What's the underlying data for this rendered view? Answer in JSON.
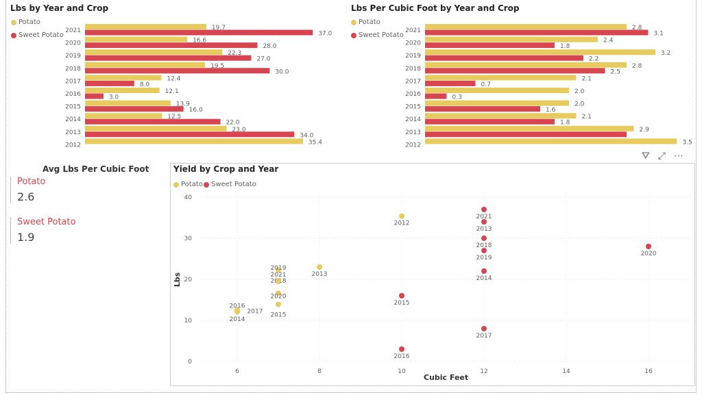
{
  "colors": {
    "potato": "#E8CB5E",
    "sweet_potato": "#D64550"
  },
  "chart_data": [
    {
      "type": "bar",
      "orientation": "horizontal",
      "title": "Lbs by Year and Crop",
      "categories": [
        "2021",
        "2020",
        "2019",
        "2018",
        "2017",
        "2016",
        "2015",
        "2014",
        "2013",
        "2012"
      ],
      "series": [
        {
          "name": "Potato",
          "values": [
            19.7,
            16.6,
            22.3,
            19.5,
            12.4,
            12.1,
            13.9,
            12.5,
            23.0,
            35.4
          ]
        },
        {
          "name": "Sweet Potato",
          "values": [
            37.0,
            28.0,
            27.0,
            30.0,
            8.0,
            3.0,
            16.0,
            22.0,
            34.0,
            null
          ]
        }
      ],
      "legend": "top-left"
    },
    {
      "type": "bar",
      "orientation": "horizontal",
      "title": "Lbs Per Cubic Foot by Year and Crop",
      "categories": [
        "2021",
        "2020",
        "2019",
        "2018",
        "2017",
        "2016",
        "2015",
        "2014",
        "2013",
        "2012"
      ],
      "series": [
        {
          "name": "Potato",
          "values": [
            2.8,
            2.4,
            3.2,
            2.8,
            2.1,
            2.0,
            2.0,
            2.1,
            2.9,
            3.5
          ]
        },
        {
          "name": "Sweet Potato",
          "values": [
            3.1,
            1.8,
            2.2,
            2.5,
            0.7,
            0.3,
            1.6,
            1.8,
            2.8,
            null
          ]
        }
      ],
      "hidden_labels": [
        "Sweet Potato 2013"
      ],
      "legend": "top-left"
    },
    {
      "type": "scatter",
      "title": "Yield by Crop and Year",
      "xlabel": "Cubic Feet",
      "ylabel": "Lbs",
      "xticks": [
        6,
        8,
        10,
        12,
        14,
        16
      ],
      "yticks": [
        0,
        10,
        20,
        30,
        40
      ],
      "xlim": [
        5,
        17
      ],
      "ylim": [
        0,
        40
      ],
      "grid": true,
      "legend": "top-left",
      "series": [
        {
          "name": "Potato",
          "points": [
            {
              "label": "2012",
              "x": 10,
              "y": 35.4
            },
            {
              "label": "2013",
              "x": 8,
              "y": 23.0
            },
            {
              "label": "2014",
              "x": 6,
              "y": 12.5
            },
            {
              "label": "2015",
              "x": 7,
              "y": 13.9
            },
            {
              "label": "2016",
              "x": 6,
              "y": 12.1
            },
            {
              "label": "2017",
              "x": 6,
              "y": 12.4
            },
            {
              "label": "2018",
              "x": 7,
              "y": 19.5
            },
            {
              "label": "2019",
              "x": 7,
              "y": 22.3
            },
            {
              "label": "2020",
              "x": 7,
              "y": 16.6
            },
            {
              "label": "2021",
              "x": 7,
              "y": 19.7
            }
          ]
        },
        {
          "name": "Sweet Potato",
          "points": [
            {
              "label": "2021",
              "x": 12,
              "y": 37
            },
            {
              "label": "2013",
              "x": 12,
              "y": 34
            },
            {
              "label": "2018",
              "x": 12,
              "y": 30
            },
            {
              "label": "2019",
              "x": 12,
              "y": 27
            },
            {
              "label": "2014",
              "x": 12,
              "y": 22
            },
            {
              "label": "2017",
              "x": 12,
              "y": 8
            },
            {
              "label": "2015",
              "x": 10,
              "y": 16
            },
            {
              "label": "2016",
              "x": 10,
              "y": 3
            },
            {
              "label": "2020",
              "x": 16,
              "y": 28
            }
          ]
        }
      ]
    }
  ],
  "card": {
    "title": "Avg Lbs Per Cubic Foot",
    "items": [
      {
        "label": "Potato",
        "value": "2.6"
      },
      {
        "label": "Sweet Potato",
        "value": "1.9"
      }
    ]
  },
  "scatter_labels_layout": {
    "2021": "2021",
    "2019": "2019",
    "2018": "2018",
    "2020": "2020",
    "2015": "2015",
    "2016": "2016",
    "2017": "2017",
    "2014": "2014"
  },
  "legend": {
    "potato": "Potato",
    "sweet_potato": "Sweet Potato"
  },
  "icons": [
    "filter-icon",
    "focus-mode-icon",
    "more-options-icon"
  ]
}
